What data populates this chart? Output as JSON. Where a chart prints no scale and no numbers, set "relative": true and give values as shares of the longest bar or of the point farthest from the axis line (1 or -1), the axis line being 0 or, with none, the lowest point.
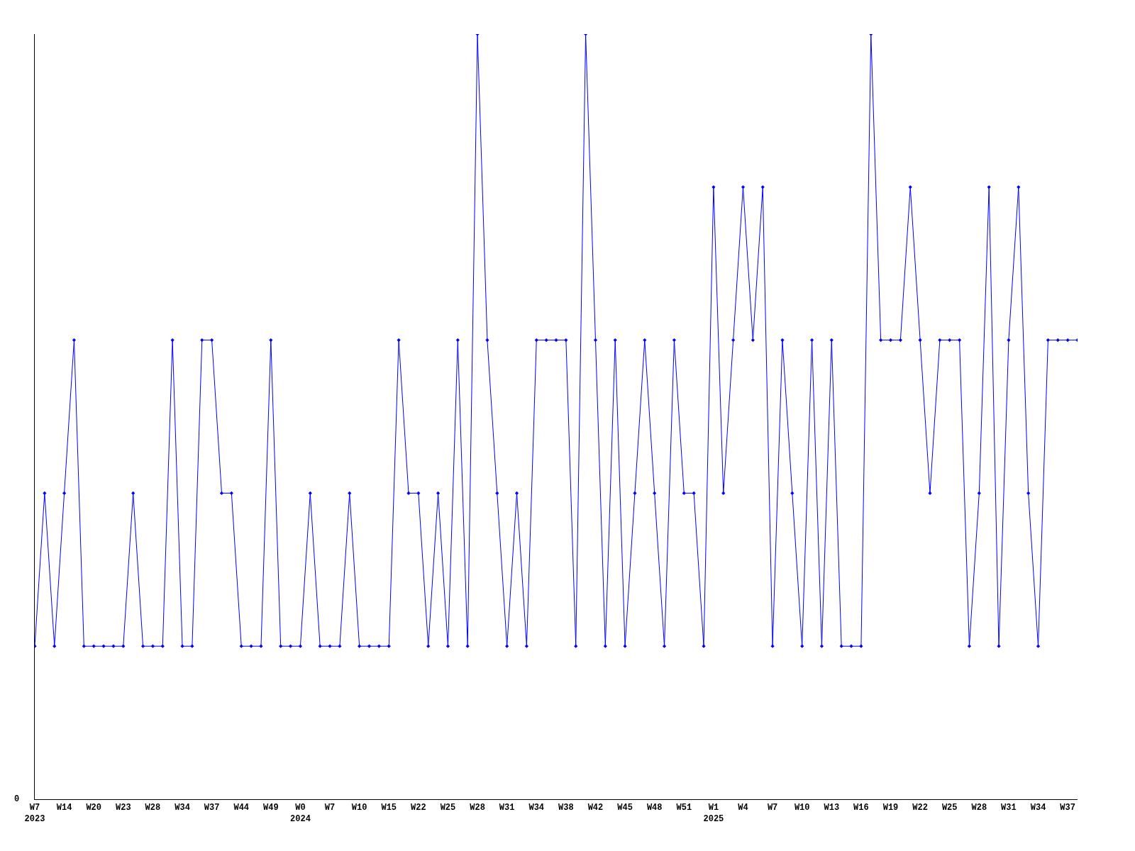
{
  "chart_data": {
    "type": "line",
    "relative": true,
    "color": "#0000ff",
    "marker": "diamond",
    "line_style": "solid",
    "annotations": [
      "0"
    ],
    "categories": [
      "W7\n2023",
      null,
      null,
      "W14",
      null,
      null,
      "W20",
      null,
      null,
      "W23",
      null,
      null,
      "W28",
      null,
      null,
      "W34",
      null,
      null,
      "W37",
      null,
      null,
      "W44",
      null,
      null,
      "W49",
      null,
      null,
      "W0\n2024",
      null,
      null,
      "W7",
      null,
      null,
      "W10",
      null,
      null,
      "W15",
      null,
      null,
      "W22",
      null,
      null,
      "W25",
      null,
      null,
      "W28",
      null,
      null,
      "W31",
      null,
      null,
      "W34",
      null,
      null,
      "W38",
      null,
      null,
      "W42",
      null,
      null,
      "W45",
      null,
      null,
      "W48",
      null,
      null,
      "W51",
      null,
      null,
      "W1\n2025",
      null,
      null,
      "W4",
      null,
      null,
      "W7",
      null,
      null,
      "W10",
      null,
      null,
      "W13",
      null,
      null,
      "W16",
      null,
      null,
      "W19",
      null,
      null,
      "W22",
      null,
      null,
      "W25",
      null,
      null,
      "W28",
      null,
      null,
      "W31",
      null,
      null,
      "W34",
      null,
      null,
      "W37",
      null
    ],
    "values": [
      0.2,
      0.4,
      0.2,
      0.4,
      0.6,
      0.2,
      0.2,
      0.2,
      0.2,
      0.2,
      0.4,
      0.2,
      0.2,
      0.2,
      0.6,
      0.2,
      0.2,
      0.6,
      0.6,
      0.4,
      0.4,
      0.2,
      0.2,
      0.2,
      0.6,
      0.2,
      0.2,
      0.2,
      0.4,
      0.2,
      0.2,
      0.2,
      0.4,
      0.2,
      0.2,
      0.2,
      0.2,
      0.6,
      0.4,
      0.4,
      0.2,
      0.4,
      0.2,
      0.6,
      0.2,
      1,
      0.6,
      0.4,
      0.2,
      0.4,
      0.2,
      0.6,
      0.6,
      0.6,
      0.6,
      0.2,
      1,
      0.6,
      0.2,
      0.6,
      0.2,
      0.4,
      0.6,
      0.4,
      0.2,
      0.6,
      0.4,
      0.4,
      0.2,
      0.8,
      0.4,
      0.6,
      0.8,
      0.6,
      0.8,
      0.2,
      0.6,
      0.4,
      0.2,
      0.6,
      0.2,
      0.6,
      0.2,
      0.2,
      0.2,
      1,
      0.6,
      0.6,
      0.6,
      0.8,
      0.6,
      0.4,
      0.6,
      0.6,
      0.6,
      0.2,
      0.4,
      0.8,
      0.2,
      0.6,
      0.8,
      0.4,
      0.2,
      0.6,
      0.6,
      0.6,
      0.6
    ]
  }
}
